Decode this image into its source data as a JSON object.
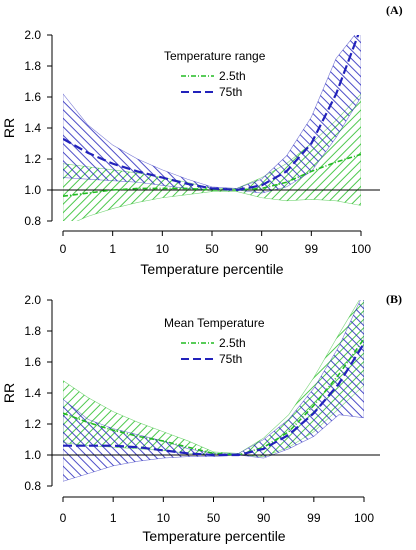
{
  "chart_data": [
    {
      "type": "line",
      "panel_label": "(A)",
      "xlabel": "Temperature percentile",
      "ylabel": "RR",
      "x_ticks": [
        "0",
        "1",
        "10",
        "50",
        "90",
        "99",
        "100"
      ],
      "y_ticks": [
        "0.8",
        "1.0",
        "1.2",
        "1.4",
        "1.6",
        "1.8",
        "2.0"
      ],
      "ylim": [
        0.8,
        2.0
      ],
      "reference_line": 1.0,
      "legend_title": "Temperature range",
      "legend_position": "top-center",
      "series": [
        {
          "name": "2.5th",
          "color": "#22bb22",
          "line_style": "dash-dot",
          "hatch": "ascending",
          "x": [
            0,
            0.5,
            1,
            1.5,
            2,
            2.5,
            3,
            3.5,
            4,
            4.5,
            5,
            5.5,
            6
          ],
          "values": [
            0.96,
            0.98,
            1.0,
            1.01,
            1.01,
            1.01,
            1.0,
            1.0,
            1.01,
            1.05,
            1.12,
            1.18,
            1.23
          ],
          "lower": [
            0.76,
            0.83,
            0.88,
            0.92,
            0.95,
            0.97,
            0.99,
            0.99,
            0.95,
            0.93,
            0.94,
            0.93,
            0.9
          ],
          "upper": [
            1.17,
            1.15,
            1.13,
            1.11,
            1.08,
            1.05,
            1.01,
            1.01,
            1.08,
            1.17,
            1.3,
            1.45,
            1.62
          ]
        },
        {
          "name": "75th",
          "color": "#2222bb",
          "line_style": "dash",
          "hatch": "descending",
          "x": [
            0,
            0.5,
            1,
            1.5,
            2,
            2.5,
            3,
            3.5,
            4,
            4.5,
            5,
            5.5,
            6
          ],
          "values": [
            1.33,
            1.24,
            1.17,
            1.12,
            1.08,
            1.04,
            1.01,
            1.0,
            1.03,
            1.12,
            1.3,
            1.62,
            2.05
          ],
          "lower": [
            1.08,
            1.07,
            1.06,
            1.05,
            1.03,
            1.01,
            1.0,
            1.0,
            0.98,
            1.02,
            1.12,
            1.34,
            1.6
          ],
          "upper": [
            1.62,
            1.42,
            1.29,
            1.2,
            1.13,
            1.07,
            1.02,
            1.01,
            1.07,
            1.22,
            1.47,
            1.85,
            2.05
          ]
        }
      ]
    },
    {
      "type": "line",
      "panel_label": "(B)",
      "xlabel": "Temperature percentile",
      "ylabel": "RR",
      "x_ticks": [
        "0",
        "1",
        "10",
        "50",
        "90",
        "99",
        "100"
      ],
      "y_ticks": [
        "0.8",
        "1.0",
        "1.2",
        "1.4",
        "1.6",
        "1.8",
        "2.0"
      ],
      "ylim": [
        0.8,
        2.0
      ],
      "reference_line": 1.0,
      "legend_title": "Mean Temperature",
      "legend_position": "top-center",
      "series": [
        {
          "name": "2.5th",
          "color": "#22bb22",
          "line_style": "dash-dot",
          "hatch": "ascending",
          "x": [
            0,
            0.5,
            1,
            1.5,
            2,
            2.5,
            3,
            3.5,
            4,
            4.5,
            5,
            5.5,
            6
          ],
          "values": [
            1.27,
            1.21,
            1.16,
            1.12,
            1.09,
            1.05,
            1.01,
            1.0,
            1.05,
            1.15,
            1.32,
            1.52,
            1.75
          ],
          "lower": [
            1.08,
            1.06,
            1.05,
            1.04,
            1.03,
            1.01,
            1.0,
            1.0,
            0.99,
            1.05,
            1.15,
            1.3,
            1.45
          ],
          "upper": [
            1.48,
            1.37,
            1.28,
            1.21,
            1.15,
            1.09,
            1.02,
            1.01,
            1.11,
            1.26,
            1.5,
            1.78,
            2.05
          ]
        },
        {
          "name": "75th",
          "color": "#2222bb",
          "line_style": "dash",
          "hatch": "descending",
          "x": [
            0,
            0.5,
            1,
            1.5,
            2,
            2.5,
            3,
            3.5,
            4,
            4.5,
            5,
            5.5,
            6
          ],
          "values": [
            1.06,
            1.06,
            1.06,
            1.05,
            1.03,
            1.01,
            1.0,
            1.0,
            1.04,
            1.13,
            1.27,
            1.46,
            1.72
          ],
          "lower": [
            0.83,
            0.88,
            0.93,
            0.96,
            0.98,
            0.99,
            0.99,
            1.0,
            0.98,
            1.04,
            1.12,
            1.26,
            1.24
          ],
          "upper": [
            1.36,
            1.23,
            1.17,
            1.13,
            1.09,
            1.04,
            1.01,
            1.01,
            1.1,
            1.23,
            1.43,
            1.7,
            2.05
          ]
        }
      ]
    }
  ]
}
